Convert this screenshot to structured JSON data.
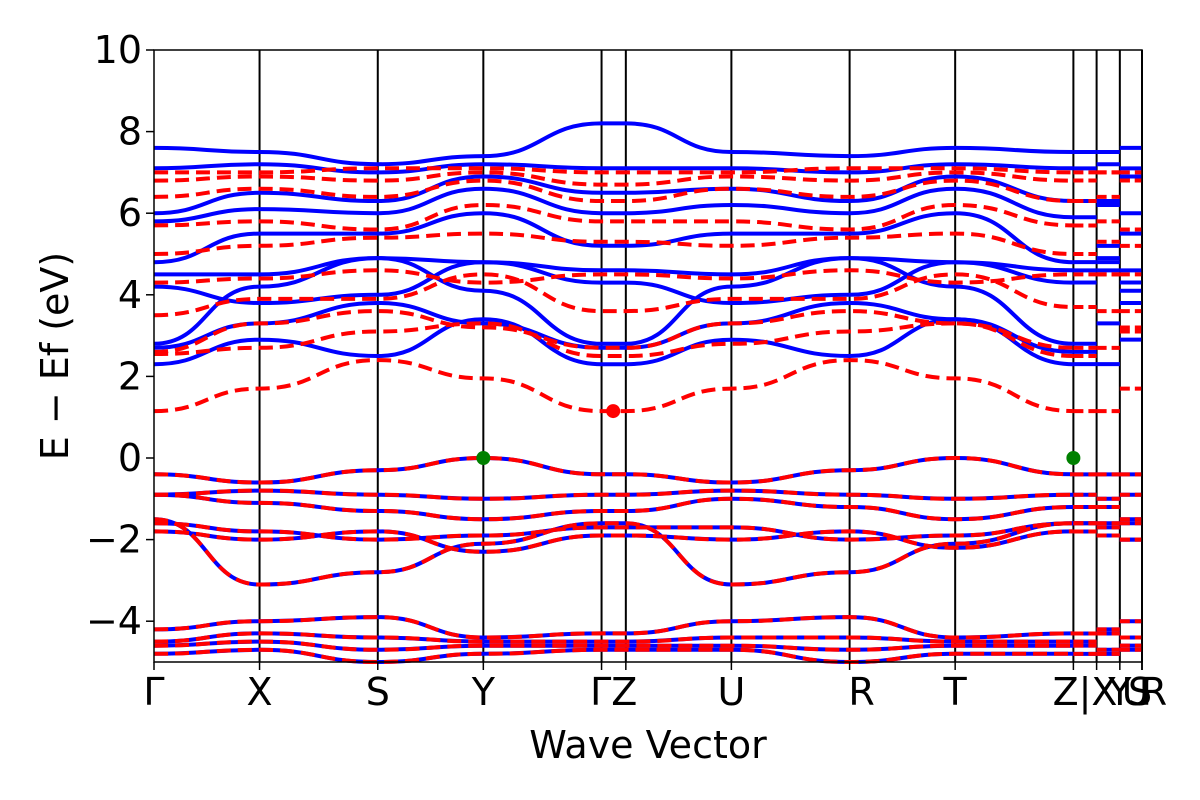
{
  "chart_data": {
    "type": "line",
    "xlabel": "Wave Vector",
    "ylabel": "E − Ef (eV)",
    "ylim": [
      -5,
      10
    ],
    "yticks": [
      -4,
      -2,
      0,
      2,
      4,
      6,
      8,
      10
    ],
    "ytick_labels": [
      "−4",
      "−2",
      "0",
      "2",
      "4",
      "6",
      "8",
      "10"
    ],
    "kpoints": [
      {
        "label": "Γ",
        "k": 0
      },
      {
        "label": "X",
        "k": 1
      },
      {
        "label": "S",
        "k": 2.12
      },
      {
        "label": "Y",
        "k": 3.12
      },
      {
        "label": "Γ",
        "k": 4.24
      },
      {
        "label": "Z",
        "k": 4.47
      },
      {
        "label": "U",
        "k": 5.47
      },
      {
        "label": "R",
        "k": 6.59
      },
      {
        "label": "T",
        "k": 7.59
      },
      {
        "label": "Z",
        "k": 8.71
      },
      {
        "label": "|X",
        "k": 8.93
      },
      {
        "label": "Y",
        "k": 9.15
      },
      {
        "label": "|U",
        "k": 9.36
      },
      {
        "label": "S",
        "k": 9.36
      },
      {
        "label": "R",
        "k": 9.36
      }
    ],
    "tick_label_text": [
      {
        "text": "Γ",
        "k": 0
      },
      {
        "text": "X",
        "k": 1
      },
      {
        "text": "S",
        "k": 2.12
      },
      {
        "text": "Y",
        "k": 3.12
      },
      {
        "text": "ΓZ",
        "k": 4.355
      },
      {
        "text": "U",
        "k": 5.47
      },
      {
        "text": "R",
        "k": 6.59
      },
      {
        "text": "T",
        "k": 7.59
      },
      {
        "text": "Z|X",
        "k": 8.82
      },
      {
        "text": "Y",
        "k": 9.15
      },
      {
        "text": "U",
        "k": 9.3
      },
      {
        "text": "S",
        "k": 9.36
      },
      {
        "text": "R",
        "k": 9.36
      }
    ],
    "vlines_k": [
      1,
      2.12,
      3.12,
      4.24,
      4.47,
      5.47,
      6.59,
      7.59,
      8.71,
      8.93,
      9.15,
      9.36
    ],
    "series": [
      {
        "style": "solid",
        "color": "#0000ff",
        "segment_values": [
          [
            -4.2,
            -4.0,
            -3.9,
            -4.4,
            -4.3,
            -4.3,
            -4.0,
            -3.9,
            -4.4,
            -4.3
          ],
          [
            -4.5,
            -4.3,
            -4.4,
            -4.5,
            -4.5,
            -4.5,
            -4.4,
            -4.4,
            -4.5,
            -4.5
          ],
          [
            -4.6,
            -4.5,
            -4.7,
            -4.6,
            -4.6,
            -4.6,
            -4.6,
            -4.7,
            -4.6,
            -4.6
          ],
          [
            -4.8,
            -4.7,
            -5.0,
            -4.8,
            -4.7,
            -4.7,
            -4.7,
            -5.0,
            -4.8,
            -4.8
          ],
          [
            -1.5,
            -3.1,
            -2.8,
            -2.1,
            -1.6,
            -1.6,
            -3.1,
            -2.8,
            -2.1,
            -1.6
          ],
          [
            -1.8,
            -2.0,
            -1.8,
            -2.3,
            -1.9,
            -1.9,
            -2.0,
            -1.8,
            -2.2,
            -1.8
          ],
          [
            -1.6,
            -1.8,
            -2.0,
            -1.9,
            -1.7,
            -1.7,
            -1.7,
            -2.0,
            -1.9,
            -1.6
          ],
          [
            -0.9,
            -1.1,
            -1.3,
            -1.5,
            -1.3,
            -1.3,
            -1.0,
            -1.2,
            -1.5,
            -1.2
          ],
          [
            -0.9,
            -0.8,
            -0.9,
            -1.0,
            -0.9,
            -0.9,
            -0.8,
            -0.9,
            -1.0,
            -0.9
          ],
          [
            -0.4,
            -0.6,
            -0.3,
            0.0,
            -0.4,
            -0.4,
            -0.6,
            -0.3,
            0.0,
            -0.4
          ],
          [
            2.3,
            2.9,
            2.5,
            3.4,
            2.3,
            2.3,
            2.9,
            2.5,
            3.4,
            2.3
          ],
          [
            2.7,
            3.3,
            3.8,
            3.3,
            2.7,
            2.7,
            3.3,
            3.8,
            3.4,
            2.6
          ],
          [
            2.8,
            4.2,
            4.9,
            4.1,
            2.8,
            2.8,
            4.2,
            4.9,
            4.2,
            2.8
          ],
          [
            4.2,
            3.8,
            4.0,
            4.8,
            4.3,
            4.3,
            3.8,
            4.0,
            4.8,
            4.3
          ],
          [
            4.5,
            4.5,
            4.9,
            4.8,
            4.6,
            4.6,
            4.5,
            4.9,
            4.8,
            4.6
          ],
          [
            4.8,
            5.5,
            5.5,
            6.0,
            5.2,
            5.2,
            5.5,
            5.5,
            6.0,
            4.8
          ],
          [
            5.8,
            6.1,
            6.0,
            6.6,
            6.0,
            6.0,
            6.2,
            6.0,
            6.6,
            5.9
          ],
          [
            6.0,
            6.5,
            6.3,
            6.9,
            6.5,
            6.5,
            6.6,
            6.3,
            6.9,
            6.3
          ],
          [
            7.1,
            7.2,
            7.0,
            7.2,
            7.1,
            7.1,
            7.1,
            7.0,
            7.2,
            7.1
          ],
          [
            7.6,
            7.5,
            7.2,
            7.4,
            8.2,
            8.2,
            7.5,
            7.4,
            7.6,
            7.5
          ]
        ]
      },
      {
        "style": "dashed",
        "color": "#ff0000",
        "segment_values": [
          [
            -4.2,
            -4.0,
            -3.9,
            -4.4,
            -4.3,
            -4.3,
            -4.0,
            -3.9,
            -4.4,
            -4.3
          ],
          [
            -4.5,
            -4.3,
            -4.4,
            -4.5,
            -4.5,
            -4.5,
            -4.4,
            -4.4,
            -4.5,
            -4.5
          ],
          [
            -4.6,
            -4.5,
            -4.7,
            -4.6,
            -4.6,
            -4.6,
            -4.6,
            -4.7,
            -4.6,
            -4.6
          ],
          [
            -4.8,
            -4.7,
            -5.0,
            -4.8,
            -4.7,
            -4.7,
            -4.7,
            -5.0,
            -4.8,
            -4.8
          ],
          [
            -1.5,
            -3.1,
            -2.8,
            -2.1,
            -1.6,
            -1.6,
            -3.1,
            -2.8,
            -2.1,
            -1.6
          ],
          [
            -1.8,
            -2.0,
            -1.8,
            -2.3,
            -1.9,
            -1.9,
            -2.0,
            -1.8,
            -2.2,
            -1.8
          ],
          [
            -1.6,
            -1.8,
            -2.0,
            -1.9,
            -1.7,
            -1.7,
            -1.7,
            -2.0,
            -1.9,
            -1.6
          ],
          [
            -0.9,
            -1.1,
            -1.3,
            -1.5,
            -1.3,
            -1.3,
            -1.0,
            -1.2,
            -1.5,
            -1.2
          ],
          [
            -0.9,
            -0.8,
            -0.9,
            -1.0,
            -0.9,
            -0.9,
            -0.8,
            -0.9,
            -1.0,
            -0.9
          ],
          [
            -0.4,
            -0.6,
            -0.3,
            0.0,
            -0.4,
            -0.4,
            -0.6,
            -0.3,
            0.0,
            -0.4
          ],
          [
            1.15,
            1.7,
            2.4,
            1.95,
            1.15,
            1.15,
            1.7,
            2.4,
            1.95,
            1.15
          ],
          [
            2.55,
            2.7,
            3.1,
            3.3,
            2.5,
            2.5,
            2.8,
            3.1,
            3.3,
            2.5
          ],
          [
            2.6,
            3.3,
            3.6,
            3.2,
            2.7,
            2.7,
            3.3,
            3.6,
            3.3,
            2.7
          ],
          [
            3.5,
            3.9,
            3.9,
            4.5,
            3.6,
            3.6,
            3.9,
            3.9,
            4.5,
            3.7
          ],
          [
            4.3,
            4.4,
            4.6,
            4.3,
            4.5,
            4.5,
            4.4,
            4.6,
            4.3,
            4.5
          ],
          [
            5.0,
            5.2,
            5.4,
            5.5,
            5.3,
            5.3,
            5.2,
            5.4,
            5.5,
            5.0
          ],
          [
            5.7,
            5.8,
            5.6,
            6.2,
            5.8,
            5.8,
            5.8,
            5.6,
            6.2,
            5.7
          ],
          [
            6.4,
            6.6,
            6.4,
            6.8,
            6.3,
            6.3,
            6.6,
            6.4,
            6.8,
            6.3
          ],
          [
            6.8,
            6.9,
            6.8,
            7.0,
            6.7,
            6.7,
            6.9,
            6.8,
            7.0,
            6.8
          ],
          [
            7.0,
            7.0,
            7.1,
            7.1,
            7.0,
            7.0,
            7.0,
            7.1,
            7.1,
            7.0
          ]
        ]
      }
    ],
    "markers": [
      {
        "k": 3.12,
        "y": 0.0,
        "color": "#008000"
      },
      {
        "k": 8.71,
        "y": 0.0,
        "color": "#008000"
      },
      {
        "k": 4.35,
        "y": 1.15,
        "color": "#ff0000"
      }
    ]
  }
}
